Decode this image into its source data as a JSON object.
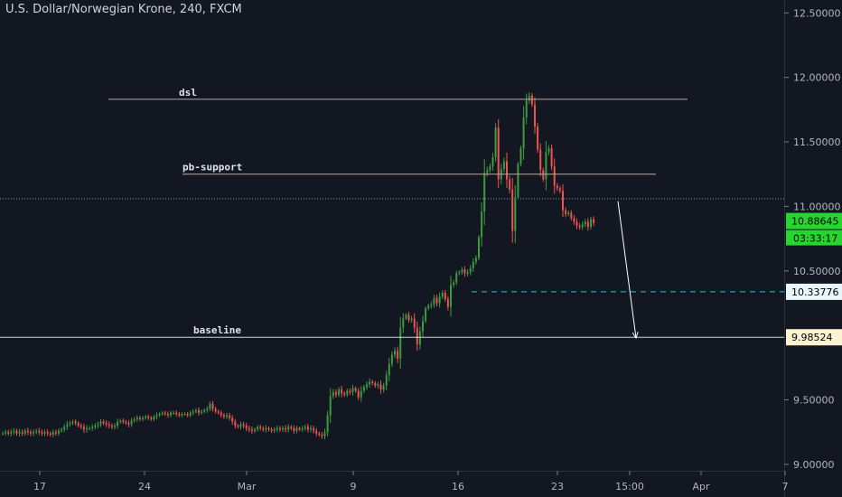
{
  "header": {
    "title": "U.S. Dollar/Norwegian Krone, 240, FXCM"
  },
  "colors": {
    "background": "#131722",
    "up": "#26a69a",
    "up_bar": "#3d9b3f",
    "down": "#ef5350",
    "axis_text": "#b2b5be",
    "grid": "#2a2e39",
    "current_price_tag": "#26d62f",
    "target_tag": "#e8f7fa",
    "baseline_tag": "#fdf3d0",
    "target_line": "#26c6da"
  },
  "chart_data": {
    "type": "candlestick",
    "title": "U.S. Dollar/Norwegian Krone, 240, FXCM",
    "y_axis_position": "right",
    "ylim": [
      8.95,
      12.6
    ],
    "y_ticks": [
      "12.50000",
      "12.00000",
      "11.50000",
      "11.00000",
      "10.50000",
      "9.50000",
      "9.00000"
    ],
    "x_ticks": [
      "17",
      "24",
      "Mar",
      "9",
      "16",
      "23",
      "15:00",
      "Apr",
      "7"
    ],
    "grid": false,
    "series": [
      {
        "values": [
          9.24,
          9.25,
          9.24,
          9.25,
          9.26,
          9.24,
          9.25,
          9.24,
          9.26,
          9.25,
          9.24,
          9.25,
          9.26,
          9.25,
          9.24,
          9.25,
          9.24,
          9.23,
          9.25,
          9.24,
          9.26,
          9.27,
          9.29,
          9.31,
          9.32,
          9.33,
          9.32,
          9.3,
          9.29,
          9.27,
          9.28,
          9.28,
          9.29,
          9.3,
          9.31,
          9.33,
          9.32,
          9.31,
          9.3,
          9.29,
          9.3,
          9.33,
          9.34,
          9.33,
          9.32,
          9.31,
          9.34,
          9.35,
          9.36,
          9.35,
          9.36,
          9.37,
          9.36,
          9.35,
          9.37,
          9.38,
          9.39,
          9.4,
          9.39,
          9.38,
          9.4,
          9.4,
          9.39,
          9.38,
          9.39,
          9.39,
          9.38,
          9.4,
          9.41,
          9.42,
          9.4,
          9.41,
          9.42,
          9.43,
          9.47,
          9.43,
          9.41,
          9.4,
          9.38,
          9.37,
          9.38,
          9.36,
          9.33,
          9.3,
          9.29,
          9.31,
          9.3,
          9.28,
          9.27,
          9.26,
          9.27,
          9.29,
          9.28,
          9.27,
          9.28,
          9.27,
          9.26,
          9.27,
          9.28,
          9.27,
          9.28,
          9.27,
          9.29,
          9.28,
          9.26,
          9.28,
          9.27,
          9.28,
          9.29,
          9.27,
          9.28,
          9.26,
          9.24,
          9.23,
          9.22,
          9.25,
          9.38,
          9.53,
          9.56,
          9.54,
          9.58,
          9.55,
          9.54,
          9.57,
          9.56,
          9.59,
          9.57,
          9.52,
          9.57,
          9.6,
          9.62,
          9.64,
          9.63,
          9.61,
          9.62,
          9.58,
          9.61,
          9.69,
          9.78,
          9.85,
          9.88,
          9.82,
          10.06,
          10.13,
          10.16,
          10.12,
          10.13,
          10.06,
          9.93,
          10.03,
          10.11,
          10.21,
          10.23,
          10.24,
          10.29,
          10.25,
          10.3,
          10.33,
          10.28,
          10.22,
          10.39,
          10.41,
          10.48,
          10.49,
          10.51,
          10.48,
          10.49,
          10.52,
          10.57,
          10.6,
          10.76,
          10.96,
          11.26,
          11.28,
          11.31,
          11.38,
          11.61,
          11.21,
          11.29,
          11.35,
          11.21,
          11.13,
          10.81,
          11.07,
          11.33,
          11.45,
          11.69,
          11.82,
          11.86,
          11.79,
          11.62,
          11.44,
          11.28,
          11.21,
          11.42,
          11.45,
          11.31,
          11.16,
          11.14,
          11.12,
          10.97,
          10.94,
          10.95,
          10.91,
          10.88,
          10.85,
          10.84,
          10.86,
          10.88,
          10.84,
          10.9,
          10.87
        ]
      }
    ],
    "annotations": [
      {
        "label": "dsl",
        "value": 11.83
      },
      {
        "label": "pb-support",
        "value": 11.25
      },
      {
        "label": "baseline",
        "value": 9.98524
      }
    ],
    "price_labels": {
      "current_price": "10.88645",
      "countdown": "03:33:17",
      "target": "10.33776",
      "baseline": "9.98524"
    },
    "reference_level": 11.06,
    "target_level": 10.33776
  }
}
